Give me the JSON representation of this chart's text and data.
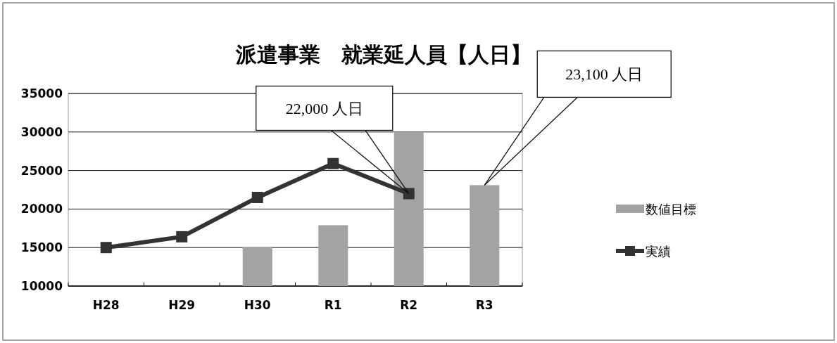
{
  "chart_data": {
    "type": "bar",
    "title": "派遣事業　就業延人員【人日】",
    "categories": [
      "H28",
      "H29",
      "H30",
      "R1",
      "R2",
      "R3"
    ],
    "series": [
      {
        "name": "数値目標",
        "color": "#a3a3a3",
        "values": [
          null,
          null,
          15100,
          17900,
          30000,
          23100
        ]
      },
      {
        "name": "実績",
        "type": "line",
        "color": "#333333",
        "marker": "square",
        "values": [
          15000,
          16400,
          21500,
          25900,
          22000,
          null
        ]
      }
    ],
    "ylim": [
      10000,
      35000
    ],
    "yticks": [
      10000,
      15000,
      20000,
      25000,
      30000,
      35000
    ],
    "grid": "y",
    "legend": "right",
    "annotations": [
      {
        "text": "22,000 人日",
        "x": "R2",
        "y": 22000
      },
      {
        "text": "23,100 人日",
        "x": "R3",
        "y": 23100
      }
    ]
  }
}
